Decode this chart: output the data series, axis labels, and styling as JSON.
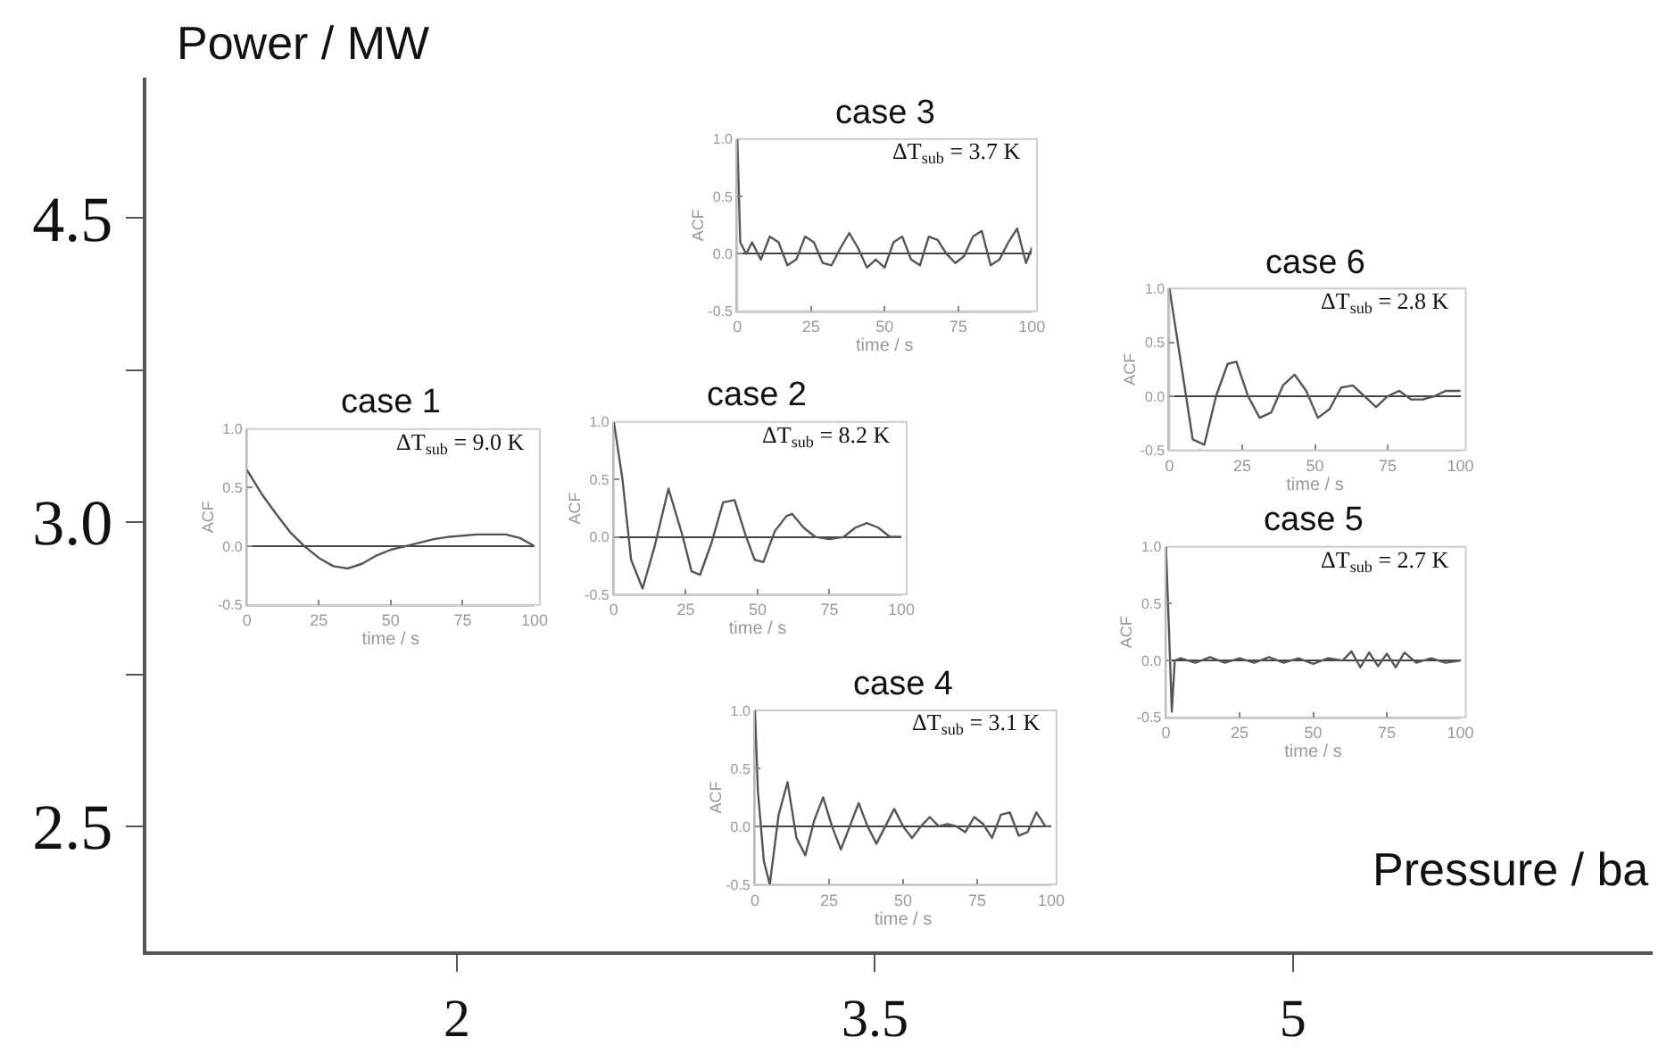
{
  "chart_data": [
    {
      "type": "other",
      "xlabel": "Pressure / ba",
      "ylabel": "Power / MW",
      "categories": [
        "2",
        "3.5",
        "5"
      ],
      "y_categories": [
        "4.5",
        null,
        "3.0",
        null,
        "2.5"
      ]
    },
    {
      "type": "line",
      "title": "case 1",
      "xlabel": "time / s",
      "ylabel": "ACF",
      "annotations": [
        "ΔT$_{sub}$ = 9.0 K"
      ],
      "xlim": [
        0,
        100
      ],
      "xticks": [
        0,
        25,
        50,
        75,
        100
      ],
      "ylim": [
        -0.5,
        1.0
      ],
      "yticks": [
        {
          "value": -0.5,
          "label": "-0.5"
        },
        {
          "value": 0,
          "label": "0.0"
        },
        {
          "value": 0.5,
          "label": "0.5"
        },
        {
          "value": 1.0,
          "label": "1.0"
        }
      ],
      "series": [
        {
          "color": "#555555",
          "x": [
            0,
            5,
            10,
            15,
            20,
            25,
            30,
            35,
            40,
            45,
            50,
            55,
            60,
            65,
            70,
            75,
            80,
            85,
            90,
            95,
            100
          ],
          "values": [
            0.65,
            0.45,
            0.28,
            0.12,
            0.0,
            -0.1,
            -0.17,
            -0.19,
            -0.15,
            -0.08,
            -0.03,
            0.0,
            0.03,
            0.06,
            0.08,
            0.09,
            0.1,
            0.1,
            0.1,
            0.07,
            0.0
          ]
        }
      ]
    },
    {
      "type": "line",
      "title": "case 2",
      "xlabel": "time / s",
      "ylabel": "ACF",
      "annotations": [
        "ΔT$_{sub}$ = 8.2 K"
      ],
      "xlim": [
        0,
        100
      ],
      "xticks": [
        0,
        25,
        50,
        75,
        100
      ],
      "ylim": [
        -0.5,
        1.0
      ],
      "yticks": [
        {
          "value": -0.5,
          "label": "-0.5"
        },
        {
          "value": 0,
          "label": "0.0"
        },
        {
          "value": 0.5,
          "label": "0.5"
        },
        {
          "value": 1.0,
          "label": "1.0"
        }
      ],
      "series": [
        {
          "color": "#555555",
          "x": [
            0,
            3,
            6,
            10,
            14,
            19,
            24,
            27,
            30,
            34,
            38,
            42,
            46,
            49,
            52,
            56,
            60,
            62,
            66,
            70,
            75,
            80,
            84,
            88,
            92,
            96,
            100
          ],
          "values": [
            1.0,
            0.5,
            -0.2,
            -0.45,
            -0.1,
            0.42,
            0.0,
            -0.3,
            -0.33,
            -0.05,
            0.3,
            0.32,
            0.0,
            -0.2,
            -0.22,
            0.05,
            0.18,
            0.2,
            0.08,
            0.0,
            -0.02,
            0.0,
            0.08,
            0.12,
            0.08,
            0.0,
            0.0
          ]
        }
      ]
    },
    {
      "type": "line",
      "title": "case 3",
      "xlabel": "time / s",
      "ylabel": "ACF",
      "annotations": [
        "ΔT$_{sub}$ = 3.7 K"
      ],
      "xlim": [
        0,
        100
      ],
      "xticks": [
        0,
        25,
        50,
        75,
        100
      ],
      "ylim": [
        -0.5,
        1.0
      ],
      "yticks": [
        {
          "value": -0.5,
          "label": "-0.5"
        },
        {
          "value": 0,
          "label": "0.0"
        },
        {
          "value": 0.5,
          "label": "0.5"
        },
        {
          "value": 1.0,
          "label": "1.0"
        }
      ],
      "series": [
        {
          "color": "#555555",
          "x": [
            0,
            1,
            3,
            5,
            8,
            11,
            14,
            17,
            20,
            23,
            26,
            29,
            32,
            35,
            38,
            41,
            44,
            47,
            50,
            53,
            56,
            59,
            62,
            65,
            68,
            71,
            74,
            77,
            80,
            83,
            86,
            89,
            92,
            95,
            98,
            100
          ],
          "values": [
            1.0,
            0.1,
            0.0,
            0.1,
            -0.05,
            0.15,
            0.1,
            -0.1,
            -0.05,
            0.15,
            0.1,
            -0.08,
            -0.1,
            0.05,
            0.18,
            0.05,
            -0.12,
            -0.05,
            -0.12,
            0.1,
            0.15,
            -0.05,
            -0.1,
            0.15,
            0.12,
            0.0,
            -0.08,
            -0.02,
            0.15,
            0.2,
            -0.1,
            -0.05,
            0.1,
            0.22,
            -0.08,
            0.05
          ]
        }
      ]
    },
    {
      "type": "line",
      "title": "case 4",
      "xlabel": "time / s",
      "ylabel": "ACF",
      "annotations": [
        "ΔT$_{sub}$ = 3.1 K"
      ],
      "xlim": [
        0,
        100
      ],
      "xticks": [
        0,
        25,
        50,
        75,
        100
      ],
      "ylim": [
        -0.5,
        1.0
      ],
      "yticks": [
        {
          "value": -0.5,
          "label": "-0.5"
        },
        {
          "value": 0,
          "label": "0.0"
        },
        {
          "value": 0.5,
          "label": "0.5"
        },
        {
          "value": 1.0,
          "label": "1.0"
        }
      ],
      "series": [
        {
          "color": "#555555",
          "x": [
            0,
            1,
            3,
            5,
            8,
            11,
            14,
            17,
            20,
            23,
            26,
            29,
            32,
            35,
            38,
            41,
            44,
            47,
            50,
            53,
            56,
            59,
            62,
            65,
            68,
            71,
            74,
            77,
            80,
            83,
            86,
            89,
            92,
            95,
            98,
            100
          ],
          "values": [
            1.0,
            0.3,
            -0.3,
            -0.5,
            0.1,
            0.38,
            -0.1,
            -0.25,
            0.05,
            0.25,
            0.0,
            -0.2,
            0.0,
            0.2,
            0.0,
            -0.15,
            0.0,
            0.15,
            0.0,
            -0.1,
            0.0,
            0.08,
            0.0,
            0.02,
            0.0,
            -0.05,
            0.08,
            0.02,
            -0.1,
            0.1,
            0.12,
            -0.08,
            -0.05,
            0.12,
            0.0,
            0.0
          ]
        }
      ]
    },
    {
      "type": "line",
      "title": "case 5",
      "xlabel": "time / s",
      "ylabel": "ACF",
      "annotations": [
        "ΔT$_{sub}$ = 2.7 K"
      ],
      "xlim": [
        0,
        100
      ],
      "xticks": [
        0,
        25,
        50,
        75,
        100
      ],
      "ylim": [
        -0.5,
        1.0
      ],
      "yticks": [
        {
          "value": -0.5,
          "label": "-0.5"
        },
        {
          "value": 0,
          "label": "0.0"
        },
        {
          "value": 0.5,
          "label": "0.5"
        },
        {
          "value": 1.0,
          "label": "1.0"
        }
      ],
      "series": [
        {
          "color": "#555555",
          "x": [
            0,
            1,
            2,
            3,
            5,
            10,
            15,
            20,
            25,
            30,
            35,
            40,
            45,
            50,
            55,
            60,
            63,
            66,
            69,
            72,
            75,
            78,
            81,
            85,
            90,
            95,
            100
          ],
          "values": [
            1.0,
            0.3,
            -0.45,
            0.0,
            0.02,
            -0.02,
            0.03,
            -0.02,
            0.02,
            -0.02,
            0.03,
            -0.02,
            0.02,
            -0.03,
            0.02,
            0.0,
            0.08,
            -0.06,
            0.07,
            -0.05,
            0.06,
            -0.06,
            0.07,
            -0.02,
            0.02,
            -0.02,
            0.0
          ]
        }
      ]
    },
    {
      "type": "line",
      "title": "case 6",
      "xlabel": "time / s",
      "ylabel": "ACF",
      "annotations": [
        "ΔT$_{sub}$ = 2.8 K"
      ],
      "xlim": [
        0,
        100
      ],
      "xticks": [
        0,
        25,
        50,
        75,
        100
      ],
      "ylim": [
        -0.5,
        1.0
      ],
      "yticks": [
        {
          "value": -0.5,
          "label": "-0.5"
        },
        {
          "value": 0,
          "label": "0.0"
        },
        {
          "value": 0.5,
          "label": "0.5"
        },
        {
          "value": 1.0,
          "label": "1.0"
        }
      ],
      "series": [
        {
          "color": "#555555",
          "x": [
            0,
            4,
            8,
            12,
            16,
            20,
            23,
            27,
            31,
            35,
            39,
            43,
            47,
            51,
            55,
            59,
            63,
            67,
            71,
            75,
            79,
            83,
            87,
            91,
            95,
            100
          ],
          "values": [
            1.0,
            0.3,
            -0.4,
            -0.45,
            0.0,
            0.3,
            0.32,
            0.0,
            -0.2,
            -0.15,
            0.1,
            0.2,
            0.05,
            -0.2,
            -0.12,
            0.08,
            0.1,
            0.0,
            -0.1,
            0.0,
            0.05,
            -0.03,
            -0.03,
            0.0,
            0.05,
            0.05
          ]
        }
      ]
    }
  ]
}
